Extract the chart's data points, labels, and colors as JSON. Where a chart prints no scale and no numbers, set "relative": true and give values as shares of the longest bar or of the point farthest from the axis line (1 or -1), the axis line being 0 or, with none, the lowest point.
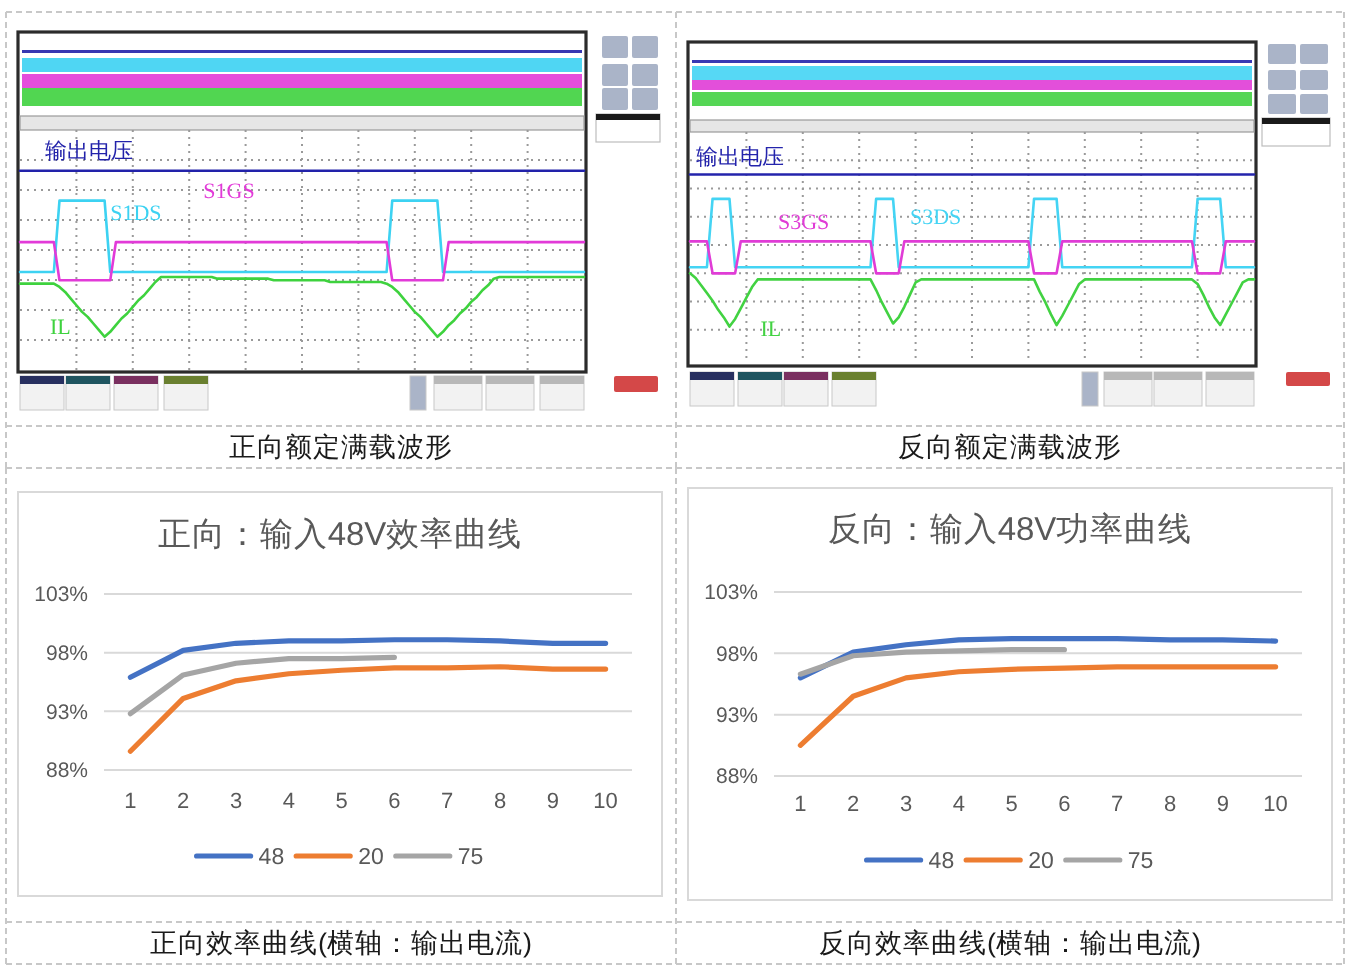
{
  "chart_data": [
    {
      "type": "line",
      "relative": true,
      "grid": true,
      "legend": false,
      "categories": [
        null,
        null,
        null,
        null,
        null,
        null,
        null,
        null,
        null,
        null,
        null,
        null,
        null,
        null,
        null,
        null,
        null,
        null,
        null,
        null,
        null,
        null,
        null,
        null,
        null,
        null,
        null,
        null,
        null,
        null,
        null,
        null,
        null,
        null,
        null,
        null,
        null,
        null,
        null,
        null,
        null,
        null,
        null,
        null,
        null,
        null,
        null,
        null,
        null,
        null,
        null,
        null,
        null,
        null,
        null,
        null,
        null,
        null,
        null,
        null,
        null,
        null,
        null,
        null,
        null,
        null,
        null,
        null,
        null,
        null,
        null,
        null,
        null,
        null,
        null,
        null,
        null,
        null,
        null,
        null,
        null,
        null,
        null,
        null,
        null,
        null,
        null,
        null,
        null,
        null,
        null,
        null,
        null,
        null,
        null,
        null,
        null,
        null,
        null,
        null,
        null
      ],
      "series": [
        {
          "name": "输出电压",
          "color": "#2222aa",
          "values": [
            1,
            1,
            1,
            1,
            1,
            1,
            1,
            1,
            1,
            1,
            1,
            1,
            1,
            1,
            1,
            1,
            1,
            1,
            1,
            1,
            1,
            1,
            1,
            1,
            1,
            1,
            1,
            1,
            1,
            1,
            1,
            1,
            1,
            1,
            1,
            1,
            1,
            1,
            1,
            1,
            1,
            1,
            1,
            1,
            1,
            1,
            1,
            1,
            1,
            1,
            1,
            1,
            1,
            1,
            1,
            1,
            1,
            1,
            1,
            1,
            1,
            1,
            1,
            1,
            1,
            1,
            1,
            1,
            1,
            1,
            1,
            1,
            1,
            1,
            1,
            1,
            1,
            1,
            1,
            1,
            1,
            1,
            1,
            1,
            1,
            1,
            1,
            1,
            1,
            1,
            1,
            1,
            1,
            1,
            1,
            1,
            1,
            1,
            1,
            1,
            1
          ]
        },
        {
          "name": "S1DS",
          "color": "#3cd2f2",
          "values": [
            0.39,
            0.39,
            0.39,
            0.39,
            0.39,
            0.39,
            0.39,
            0.82,
            0.82,
            0.82,
            0.82,
            0.82,
            0.82,
            0.82,
            0.82,
            0.82,
            0.39,
            0.39,
            0.39,
            0.39,
            0.39,
            0.39,
            0.39,
            0.39,
            0.39,
            0.39,
            0.39,
            0.39,
            0.39,
            0.39,
            0.39,
            0.39,
            0.39,
            0.39,
            0.39,
            0.39,
            0.39,
            0.39,
            0.39,
            0.39,
            0.39,
            0.39,
            0.39,
            0.39,
            0.39,
            0.39,
            0.39,
            0.39,
            0.39,
            0.39,
            0.39,
            0.39,
            0.39,
            0.39,
            0.39,
            0.39,
            0.39,
            0.39,
            0.39,
            0.39,
            0.39,
            0.39,
            0.39,
            0.39,
            0.39,
            0.39,
            0.82,
            0.82,
            0.82,
            0.82,
            0.82,
            0.82,
            0.82,
            0.82,
            0.82,
            0.39,
            0.39,
            0.39,
            0.39,
            0.39,
            0.39,
            0.39,
            0.39,
            0.39,
            0.39,
            0.39,
            0.39,
            0.39,
            0.39,
            0.39,
            0.39,
            0.39,
            0.39,
            0.39,
            0.39,
            0.39,
            0.39,
            0.39,
            0.39,
            0.39,
            0.39
          ]
        },
        {
          "name": "S1GS",
          "color": "#e23ad8",
          "values": [
            0.57,
            0.57,
            0.57,
            0.57,
            0.57,
            0.57,
            0.57,
            0.34,
            0.34,
            0.34,
            0.34,
            0.34,
            0.34,
            0.34,
            0.34,
            0.34,
            0.34,
            0.57,
            0.57,
            0.57,
            0.57,
            0.57,
            0.57,
            0.57,
            0.57,
            0.57,
            0.57,
            0.57,
            0.57,
            0.57,
            0.57,
            0.57,
            0.57,
            0.57,
            0.57,
            0.57,
            0.57,
            0.57,
            0.57,
            0.57,
            0.57,
            0.57,
            0.57,
            0.57,
            0.57,
            0.57,
            0.57,
            0.57,
            0.57,
            0.57,
            0.57,
            0.57,
            0.57,
            0.57,
            0.57,
            0.57,
            0.57,
            0.57,
            0.57,
            0.57,
            0.57,
            0.57,
            0.57,
            0.57,
            0.57,
            0.57,
            0.34,
            0.34,
            0.34,
            0.34,
            0.34,
            0.34,
            0.34,
            0.34,
            0.34,
            0.34,
            0.57,
            0.57,
            0.57,
            0.57,
            0.57,
            0.57,
            0.57,
            0.57,
            0.57,
            0.57,
            0.57,
            0.57,
            0.57,
            0.57,
            0.57,
            0.57,
            0.57,
            0.57,
            0.57,
            0.57,
            0.57,
            0.57,
            0.57,
            0.57,
            0.57
          ]
        },
        {
          "name": "IL",
          "color": "#3ed23e",
          "values": [
            0.32,
            0.32,
            0.32,
            0.32,
            0.32,
            0.32,
            0.32,
            0.3,
            0.27,
            0.23,
            0.19,
            0.15,
            0.12,
            0.08,
            0.04,
            0,
            0.03,
            0.07,
            0.11,
            0.14,
            0.18,
            0.22,
            0.25,
            0.29,
            0.33,
            0.36,
            0.36,
            0.36,
            0.36,
            0.36,
            0.36,
            0.36,
            0.36,
            0.36,
            0.36,
            0.35,
            0.35,
            0.35,
            0.35,
            0.35,
            0.35,
            0.35,
            0.35,
            0.35,
            0.35,
            0.34,
            0.34,
            0.34,
            0.34,
            0.34,
            0.34,
            0.34,
            0.34,
            0.34,
            0.34,
            0.33,
            0.33,
            0.33,
            0.33,
            0.33,
            0.33,
            0.33,
            0.33,
            0.33,
            0.33,
            0.32,
            0.3,
            0.27,
            0.23,
            0.19,
            0.15,
            0.12,
            0.08,
            0.04,
            0,
            0.03,
            0.07,
            0.1,
            0.14,
            0.17,
            0.21,
            0.24,
            0.28,
            0.31,
            0.35,
            0.36,
            0.36,
            0.36,
            0.36,
            0.36,
            0.36,
            0.36,
            0.36,
            0.36,
            0.36,
            0.36,
            0.36,
            0.36,
            0.36,
            0.36,
            0.36
          ]
        }
      ],
      "annotations": [
        "正向额定满载波形"
      ]
    },
    {
      "type": "line",
      "relative": true,
      "grid": true,
      "legend": false,
      "categories": [
        null,
        null,
        null,
        null,
        null,
        null,
        null,
        null,
        null,
        null,
        null,
        null,
        null,
        null,
        null,
        null,
        null,
        null,
        null,
        null,
        null,
        null,
        null,
        null,
        null,
        null,
        null,
        null,
        null,
        null,
        null,
        null,
        null,
        null,
        null,
        null,
        null,
        null,
        null,
        null,
        null,
        null,
        null,
        null,
        null,
        null,
        null,
        null,
        null,
        null,
        null,
        null,
        null,
        null,
        null,
        null,
        null,
        null,
        null,
        null,
        null,
        null,
        null,
        null,
        null,
        null,
        null,
        null,
        null,
        null,
        null,
        null,
        null,
        null,
        null,
        null,
        null,
        null,
        null,
        null,
        null,
        null,
        null,
        null,
        null,
        null,
        null,
        null,
        null,
        null,
        null,
        null,
        null,
        null,
        null,
        null,
        null,
        null,
        null,
        null,
        null
      ],
      "series": [
        {
          "name": "输出电压",
          "color": "#2424ac",
          "values": [
            1,
            1,
            1,
            1,
            1,
            1,
            1,
            1,
            1,
            1,
            1,
            1,
            1,
            1,
            1,
            1,
            1,
            1,
            1,
            1,
            1,
            1,
            1,
            1,
            1,
            1,
            1,
            1,
            1,
            1,
            1,
            1,
            1,
            1,
            1,
            1,
            1,
            1,
            1,
            1,
            1,
            1,
            1,
            1,
            1,
            1,
            1,
            1,
            1,
            1,
            1,
            1,
            1,
            1,
            1,
            1,
            1,
            1,
            1,
            1,
            1,
            1,
            1,
            1,
            1,
            1,
            1,
            1,
            1,
            1,
            1,
            1,
            1,
            1,
            1,
            1,
            1,
            1,
            1,
            1,
            1,
            1,
            1,
            1,
            1,
            1,
            1,
            1,
            1,
            1,
            1,
            1,
            1,
            1,
            1,
            1,
            1,
            1,
            1,
            1,
            1
          ]
        },
        {
          "name": "S3DS",
          "color": "#44d4f4",
          "values": [
            0.39,
            0.39,
            0.39,
            0.39,
            0.84,
            0.84,
            0.84,
            0.84,
            0.39,
            0.39,
            0.39,
            0.39,
            0.39,
            0.39,
            0.39,
            0.39,
            0.39,
            0.39,
            0.39,
            0.39,
            0.39,
            0.39,
            0.39,
            0.39,
            0.39,
            0.39,
            0.39,
            0.39,
            0.39,
            0.39,
            0.39,
            0.39,
            0.39,
            0.84,
            0.84,
            0.84,
            0.84,
            0.39,
            0.39,
            0.39,
            0.39,
            0.39,
            0.39,
            0.39,
            0.39,
            0.39,
            0.39,
            0.39,
            0.39,
            0.39,
            0.39,
            0.39,
            0.39,
            0.39,
            0.39,
            0.39,
            0.39,
            0.39,
            0.39,
            0.39,
            0.39,
            0.84,
            0.84,
            0.84,
            0.84,
            0.84,
            0.39,
            0.39,
            0.39,
            0.39,
            0.39,
            0.39,
            0.39,
            0.39,
            0.39,
            0.39,
            0.39,
            0.39,
            0.39,
            0.39,
            0.39,
            0.39,
            0.39,
            0.39,
            0.39,
            0.39,
            0.39,
            0.39,
            0.39,
            0.39,
            0.84,
            0.84,
            0.84,
            0.84,
            0.84,
            0.39,
            0.39,
            0.39,
            0.39,
            0.39,
            0.39
          ]
        },
        {
          "name": "S3GS",
          "color": "#e03cd6",
          "values": [
            0.56,
            0.56,
            0.56,
            0.56,
            0.35,
            0.35,
            0.35,
            0.35,
            0.35,
            0.56,
            0.56,
            0.56,
            0.56,
            0.56,
            0.56,
            0.56,
            0.56,
            0.56,
            0.56,
            0.56,
            0.56,
            0.56,
            0.56,
            0.56,
            0.56,
            0.56,
            0.56,
            0.56,
            0.56,
            0.56,
            0.56,
            0.56,
            0.56,
            0.35,
            0.35,
            0.35,
            0.35,
            0.35,
            0.56,
            0.56,
            0.56,
            0.56,
            0.56,
            0.56,
            0.56,
            0.56,
            0.56,
            0.56,
            0.56,
            0.56,
            0.56,
            0.56,
            0.56,
            0.56,
            0.56,
            0.56,
            0.56,
            0.56,
            0.56,
            0.56,
            0.56,
            0.35,
            0.35,
            0.35,
            0.35,
            0.35,
            0.56,
            0.56,
            0.56,
            0.56,
            0.56,
            0.56,
            0.56,
            0.56,
            0.56,
            0.56,
            0.56,
            0.56,
            0.56,
            0.56,
            0.56,
            0.56,
            0.56,
            0.56,
            0.56,
            0.56,
            0.56,
            0.56,
            0.56,
            0.56,
            0.35,
            0.35,
            0.35,
            0.35,
            0.35,
            0.56,
            0.56,
            0.56,
            0.56,
            0.56,
            0.56
          ]
        },
        {
          "name": "IL",
          "color": "#42d242",
          "values": [
            0.35,
            0.32,
            0.27,
            0.22,
            0.17,
            0.11,
            0.06,
            0,
            0.05,
            0.12,
            0.19,
            0.26,
            0.31,
            0.31,
            0.31,
            0.31,
            0.31,
            0.31,
            0.31,
            0.31,
            0.31,
            0.31,
            0.31,
            0.31,
            0.31,
            0.31,
            0.31,
            0.31,
            0.31,
            0.31,
            0.31,
            0.31,
            0.31,
            0.24,
            0.16,
            0.09,
            0.02,
            0.06,
            0.13,
            0.21,
            0.29,
            0.31,
            0.31,
            0.31,
            0.31,
            0.31,
            0.31,
            0.31,
            0.31,
            0.31,
            0.31,
            0.31,
            0.31,
            0.31,
            0.31,
            0.31,
            0.31,
            0.31,
            0.31,
            0.31,
            0.31,
            0.31,
            0.23,
            0.16,
            0.08,
            0.01,
            0.07,
            0.14,
            0.21,
            0.28,
            0.31,
            0.31,
            0.31,
            0.31,
            0.31,
            0.31,
            0.31,
            0.31,
            0.31,
            0.31,
            0.31,
            0.31,
            0.31,
            0.31,
            0.31,
            0.31,
            0.31,
            0.31,
            0.31,
            0.31,
            0.28,
            0.21,
            0.13,
            0.06,
            0.01,
            0.08,
            0.15,
            0.22,
            0.29,
            0.31,
            0.31
          ]
        }
      ],
      "annotations": [
        "反向额定满载波形"
      ]
    },
    {
      "type": "line",
      "title": "正向：输入48V效率曲线",
      "categories": [
        "1",
        "2",
        "3",
        "4",
        "5",
        "6",
        "7",
        "8",
        "9",
        "10"
      ],
      "series": [
        {
          "name": "48",
          "color": "#4472c4",
          "values": [
            95.9,
            98.2,
            98.8,
            99.0,
            99.0,
            99.1,
            99.1,
            99.0,
            98.8,
            98.8
          ]
        },
        {
          "name": "20",
          "color": "#ed7d31",
          "values": [
            89.6,
            94.1,
            95.6,
            96.2,
            96.5,
            96.7,
            96.7,
            96.8,
            96.6,
            96.6
          ]
        },
        {
          "name": "75",
          "color": "#a5a5a5",
          "values": [
            92.8,
            96.1,
            97.1,
            97.5,
            97.5,
            97.6,
            null,
            null,
            null,
            null
          ]
        }
      ],
      "ylim": [
        88,
        103
      ],
      "yticks": [
        {
          "value": 88,
          "label": "88%"
        },
        {
          "value": 93,
          "label": "93%"
        },
        {
          "value": 98,
          "label": "98%"
        },
        {
          "value": 103,
          "label": "103%"
        }
      ],
      "grid": "y",
      "legend": "bottom",
      "annotations": [
        "正向效率曲线(横轴：输出电流)"
      ]
    },
    {
      "type": "line",
      "title": "反向：输入48V功率曲线",
      "categories": [
        "1",
        "2",
        "3",
        "4",
        "5",
        "6",
        "7",
        "8",
        "9",
        "10"
      ],
      "series": [
        {
          "name": "48",
          "color": "#4472c4",
          "values": [
            96.0,
            98.1,
            98.7,
            99.1,
            99.2,
            99.2,
            99.2,
            99.1,
            99.1,
            99.0
          ]
        },
        {
          "name": "20",
          "color": "#ed7d31",
          "values": [
            90.5,
            94.5,
            96.0,
            96.5,
            96.7,
            96.8,
            96.9,
            96.9,
            96.9,
            96.9
          ]
        },
        {
          "name": "75",
          "color": "#a5a5a5",
          "values": [
            96.3,
            97.8,
            98.1,
            98.2,
            98.3,
            98.3,
            null,
            null,
            null,
            null
          ]
        }
      ],
      "ylim": [
        88,
        103
      ],
      "yticks": [
        {
          "value": 88,
          "label": "88%"
        },
        {
          "value": 93,
          "label": "93%"
        },
        {
          "value": 98,
          "label": "98%"
        },
        {
          "value": 103,
          "label": "103%"
        }
      ],
      "grid": "y",
      "legend": "bottom",
      "annotations": [
        "反向效率曲线(横轴：输出电流)"
      ]
    }
  ]
}
